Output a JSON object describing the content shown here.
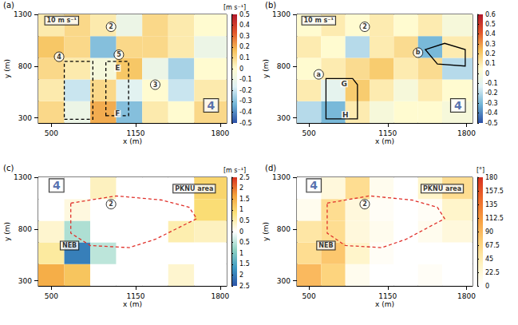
{
  "chart_data": [
    {
      "type": "heatmap",
      "title": "(a)",
      "x_label": "x (m)",
      "y_label": "y (m)",
      "xlim": [
        400,
        1850
      ],
      "ylim": [
        250,
        1300
      ],
      "xticks": [
        500,
        1150,
        1800
      ],
      "yticks": [
        300,
        800,
        1300
      ],
      "x_edges": [
        400,
        600,
        800,
        1000,
        1200,
        1400,
        1600,
        1850
      ],
      "y_edges": [
        250,
        460,
        670,
        880,
        1090,
        1300
      ],
      "cells": [
        [
          0.1,
          -0.1,
          0.2,
          -0.3,
          0.05,
          0,
          0.1
        ],
        [
          0.05,
          -0.2,
          0.1,
          -0.15,
          0,
          -0.2,
          0.05
        ],
        [
          0.1,
          0.05,
          -0.05,
          0.15,
          -0.1,
          -0.25,
          0
        ],
        [
          0.15,
          0.1,
          -0.3,
          0.1,
          0.1,
          0.05,
          -0.1
        ],
        [
          0.05,
          0.1,
          0.05,
          -0.1,
          0.1,
          0.05,
          0
        ]
      ],
      "colorbar": {
        "label": "[m s⁻¹]",
        "range": [
          -0.5,
          0.5
        ],
        "ticks": [
          -0.5,
          -0.4,
          -0.3,
          -0.2,
          -0.1,
          0,
          0.1,
          0.2,
          0.3,
          0.4,
          0.5
        ],
        "colors": [
          "#2b4fa6",
          "#6fb3d6",
          "#dff1f5",
          "#fffbd0",
          "#f6c15a",
          "#e2562a",
          "#b2182b"
        ]
      },
      "annotations": [
        {
          "text": "10 m s⁻¹",
          "x": 580,
          "y": 1240,
          "marker": "box"
        },
        {
          "text": "2",
          "x": 960,
          "y": 1180,
          "marker": "circle"
        },
        {
          "text": "4",
          "x": 560,
          "y": 890,
          "marker": "circle"
        },
        {
          "text": "5",
          "x": 1020,
          "y": 910,
          "marker": "circle"
        },
        {
          "text": "3",
          "x": 1300,
          "y": 620,
          "marker": "circle"
        },
        {
          "text": "E",
          "x": 1010,
          "y": 780
        },
        {
          "text": "F",
          "x": 1010,
          "y": 340
        },
        {
          "text": "4",
          "x": 1730,
          "y": 420,
          "marker": "box",
          "color": "#2b4b9b"
        }
      ],
      "regions": [
        {
          "points": [
            [
              600,
              285
            ],
            [
              820,
              285
            ],
            [
              820,
              845
            ],
            [
              600,
              845
            ]
          ],
          "color": "#000000",
          "line_style": "dashed"
        },
        {
          "points": [
            [
              920,
              320
            ],
            [
              1095,
              320
            ],
            [
              1095,
              845
            ],
            [
              920,
              845
            ]
          ],
          "color": "#000000",
          "line_style": "dashed"
        }
      ]
    },
    {
      "type": "heatmap",
      "title": "(b)",
      "x_label": "x (m)",
      "y_label": "y (m)",
      "xlim": [
        400,
        1850
      ],
      "ylim": [
        250,
        1300
      ],
      "xticks": [
        500,
        1150,
        1800
      ],
      "yticks": [
        300,
        800,
        1300
      ],
      "x_edges": [
        400,
        600,
        800,
        1000,
        1200,
        1400,
        1600,
        1850
      ],
      "y_edges": [
        250,
        460,
        670,
        880,
        1090,
        1300
      ],
      "cells": [
        [
          -0.2,
          -0.3,
          0.1,
          0,
          0.05,
          0.05,
          0
        ],
        [
          0.1,
          -0.1,
          0.2,
          0.1,
          0,
          0.1,
          0.05
        ],
        [
          0.05,
          0.1,
          0.15,
          0.2,
          0.1,
          0.15,
          -0.2
        ],
        [
          0.1,
          0.05,
          -0.2,
          0.1,
          0.15,
          -0.3,
          0.1
        ],
        [
          0.05,
          0.1,
          0.05,
          0.1,
          0.05,
          0.1,
          0
        ]
      ],
      "colorbar": {
        "range": [
          -0.5,
          0.6
        ],
        "ticks": [
          -0.5,
          -0.4,
          -0.3,
          -0.2,
          -0.1,
          0,
          0.1,
          0.2,
          0.3,
          0.4,
          0.5,
          0.6
        ],
        "colors": [
          "#2b4fa6",
          "#6fb3d6",
          "#dff1f5",
          "#fffbd0",
          "#f6c15a",
          "#e2562a",
          "#b2182b"
        ]
      },
      "annotations": [
        {
          "text": "10 m s⁻¹",
          "x": 580,
          "y": 1240,
          "marker": "box"
        },
        {
          "text": "2",
          "x": 960,
          "y": 1180,
          "marker": "circle"
        },
        {
          "text": "a",
          "x": 580,
          "y": 720,
          "marker": "circle"
        },
        {
          "text": "b",
          "x": 1400,
          "y": 930,
          "marker": "circle"
        },
        {
          "text": "G",
          "x": 790,
          "y": 630
        },
        {
          "text": "H",
          "x": 800,
          "y": 330
        },
        {
          "text": "4",
          "x": 1730,
          "y": 420,
          "marker": "box",
          "color": "#2b4b9b"
        }
      ],
      "regions": [
        {
          "points": [
            [
              640,
              290
            ],
            [
              900,
              290
            ],
            [
              900,
              620
            ],
            [
              860,
              680
            ],
            [
              640,
              680
            ]
          ],
          "color": "#000000",
          "line_style": "solid"
        },
        {
          "points": [
            [
              1460,
              960
            ],
            [
              1620,
              1020
            ],
            [
              1790,
              960
            ],
            [
              1790,
              800
            ],
            [
              1560,
              820
            ]
          ],
          "color": "#000000",
          "line_style": "solid"
        }
      ]
    },
    {
      "type": "heatmap",
      "title": "(c)",
      "x_label": "x (m)",
      "y_label": "y (m)",
      "xlim": [
        400,
        1850
      ],
      "ylim": [
        250,
        1300
      ],
      "xticks": [
        500,
        1150,
        1800
      ],
      "yticks": [
        300,
        800,
        1300
      ],
      "x_edges": [
        400,
        600,
        800,
        1000,
        1200,
        1400,
        1600,
        1850
      ],
      "y_edges": [
        250,
        460,
        670,
        880,
        1090,
        1300
      ],
      "cells": [
        [
          1.5,
          1.2,
          0,
          0,
          0,
          0.3,
          0
        ],
        [
          0.6,
          -2.0,
          -0.5,
          0,
          0,
          0,
          0
        ],
        [
          0.3,
          -0.6,
          0,
          0,
          0,
          0.5,
          0.4
        ],
        [
          0,
          0.2,
          0,
          0,
          0,
          0,
          0.9
        ],
        [
          0,
          0,
          0.4,
          0,
          0,
          0,
          1.0
        ]
      ],
      "colorbar": {
        "label": "[m s⁻¹]",
        "range": [
          -2.5,
          2.5
        ],
        "ticks": [
          {
            "value": -2.5,
            "label": "2.5"
          },
          {
            "value": -2,
            "label": "2"
          },
          {
            "value": -1.5,
            "label": "1.5"
          },
          {
            "value": -1,
            "label": "1"
          },
          {
            "value": -0.5,
            "label": "0.5"
          },
          0,
          0.5,
          1,
          1.5,
          2,
          2.5
        ],
        "colors": [
          "#2c54a8",
          "#3f9bc4",
          "#8fd3c2",
          "#ffffff",
          "#fbe27a",
          "#f3a13b",
          "#d7301f"
        ]
      },
      "annotations": [
        {
          "text": "4",
          "x": 540,
          "y": 1220,
          "marker": "box",
          "color": "#2b4b9b"
        },
        {
          "text": "2",
          "x": 960,
          "y": 1040,
          "marker": "circle"
        },
        {
          "text": "NEB",
          "x": 640,
          "y": 640,
          "marker": "box"
        },
        {
          "text": "PKNU area",
          "x": 1600,
          "y": 1190,
          "marker": "box"
        }
      ],
      "regions": [
        {
          "points": [
            [
              650,
              1050
            ],
            [
              1000,
              1120
            ],
            [
              1350,
              1080
            ],
            [
              1560,
              1010
            ],
            [
              1620,
              900
            ],
            [
              1300,
              700
            ],
            [
              1100,
              620
            ],
            [
              800,
              640
            ],
            [
              650,
              760
            ]
          ],
          "color": "#e0302a",
          "line_style": "dashed"
        }
      ]
    },
    {
      "type": "heatmap",
      "title": "(d)",
      "x_label": "x (m)",
      "y_label": "y (m)",
      "xlim": [
        400,
        1850
      ],
      "ylim": [
        250,
        1300
      ],
      "xticks": [
        500,
        1150,
        1800
      ],
      "yticks": [
        300,
        800,
        1300
      ],
      "x_edges": [
        400,
        600,
        800,
        1000,
        1200,
        1400,
        1600,
        1850
      ],
      "y_edges": [
        250,
        460,
        670,
        880,
        1090,
        1300
      ],
      "cells": [
        [
          90,
          70,
          10,
          0,
          0,
          5,
          0
        ],
        [
          60,
          80,
          30,
          5,
          0,
          0,
          0
        ],
        [
          50,
          60,
          20,
          10,
          0,
          10,
          20
        ],
        [
          10,
          60,
          20,
          5,
          0,
          5,
          30
        ],
        [
          0,
          20,
          60,
          10,
          0,
          30,
          60
        ]
      ],
      "colorbar": {
        "label": "[°]",
        "range": [
          0,
          180
        ],
        "ticks": [
          0,
          22.5,
          45,
          67.5,
          90,
          112.5,
          135,
          157.5,
          180
        ],
        "colors": [
          "#ffffff",
          "#fff3c0",
          "#fdd27a",
          "#f7a042",
          "#ee6a2b",
          "#d7301f"
        ]
      },
      "annotations": [
        {
          "text": "4",
          "x": 540,
          "y": 1220,
          "marker": "box",
          "color": "#2b4b9b"
        },
        {
          "text": "2",
          "x": 960,
          "y": 1040,
          "marker": "circle"
        },
        {
          "text": "NEB",
          "x": 640,
          "y": 640,
          "marker": "box"
        },
        {
          "text": "PKNU area",
          "x": 1600,
          "y": 1190,
          "marker": "box"
        }
      ],
      "regions": [
        {
          "points": [
            [
              650,
              1050
            ],
            [
              1000,
              1120
            ],
            [
              1350,
              1080
            ],
            [
              1560,
              1010
            ],
            [
              1620,
              900
            ],
            [
              1300,
              700
            ],
            [
              1100,
              620
            ],
            [
              800,
              640
            ],
            [
              650,
              760
            ]
          ],
          "color": "#e0302a",
          "line_style": "dashed"
        }
      ]
    }
  ]
}
